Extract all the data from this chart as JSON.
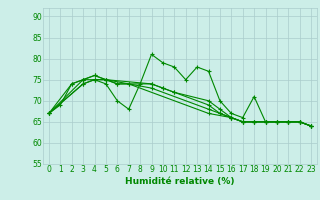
{
  "xlabel": "Humidité relative (%)",
  "background_color": "#cceee8",
  "grid_color": "#aacccc",
  "line_color": "#008800",
  "xlim": [
    -0.5,
    23.5
  ],
  "ylim": [
    55,
    92
  ],
  "yticks": [
    55,
    60,
    65,
    70,
    75,
    80,
    85,
    90
  ],
  "xticks": [
    0,
    1,
    2,
    3,
    4,
    5,
    6,
    7,
    8,
    9,
    10,
    11,
    12,
    13,
    14,
    15,
    16,
    17,
    18,
    19,
    20,
    21,
    22,
    23
  ],
  "lines": [
    {
      "x": [
        0,
        1,
        2,
        3,
        4,
        5,
        6,
        7,
        8,
        9,
        10,
        11,
        12,
        13,
        14,
        15,
        16,
        17,
        18,
        19,
        20,
        21,
        22,
        23
      ],
      "y": [
        67,
        69,
        74,
        75,
        75,
        74,
        70,
        68,
        74,
        81,
        79,
        78,
        75,
        78,
        77,
        70,
        67,
        66,
        71,
        65,
        65,
        65,
        65,
        64
      ]
    },
    {
      "x": [
        0,
        2,
        3,
        4,
        5,
        6,
        7,
        9,
        10,
        11,
        14,
        15,
        16,
        17,
        18,
        19,
        20,
        21,
        22,
        23
      ],
      "y": [
        67,
        74,
        75,
        76,
        75,
        74,
        74,
        74,
        73,
        72,
        70,
        68,
        66,
        65,
        65,
        65,
        65,
        65,
        65,
        64
      ]
    },
    {
      "x": [
        0,
        3,
        4,
        5,
        9,
        10,
        11,
        14,
        15,
        16,
        17,
        18,
        19,
        20,
        21,
        22,
        23
      ],
      "y": [
        67,
        74,
        75,
        75,
        74,
        73,
        72,
        69,
        67,
        66,
        65,
        65,
        65,
        65,
        65,
        65,
        64
      ]
    },
    {
      "x": [
        0,
        3,
        4,
        5,
        9,
        14,
        15,
        16,
        17,
        18,
        19,
        20,
        21,
        22,
        23
      ],
      "y": [
        67,
        74,
        75,
        75,
        73,
        68,
        67,
        66,
        65,
        65,
        65,
        65,
        65,
        65,
        64
      ]
    },
    {
      "x": [
        0,
        3,
        4,
        5,
        6,
        7,
        14,
        16,
        17,
        18,
        19,
        20,
        21,
        22,
        23
      ],
      "y": [
        67,
        75,
        76,
        75,
        74,
        74,
        67,
        66,
        65,
        65,
        65,
        65,
        65,
        65,
        64
      ]
    }
  ]
}
